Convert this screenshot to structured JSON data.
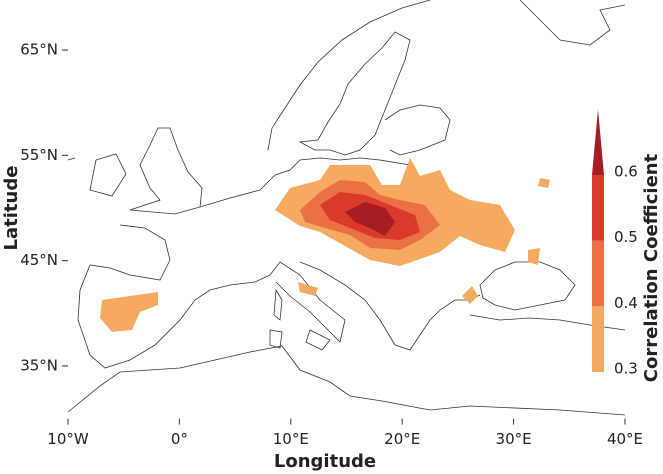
{
  "chart_data": {
    "type": "filled-contour-map",
    "xlabel": "Longitude",
    "ylabel": "Latitude",
    "xlim": [
      -10,
      40
    ],
    "ylim": [
      30,
      70
    ],
    "xticks": [
      {
        "value": -10,
        "label": "10°W"
      },
      {
        "value": 0,
        "label": "0°"
      },
      {
        "value": 10,
        "label": "10°E"
      },
      {
        "value": 20,
        "label": "20°E"
      },
      {
        "value": 30,
        "label": "30°E"
      },
      {
        "value": 40,
        "label": "40°E"
      }
    ],
    "yticks": [
      {
        "value": 35,
        "label": "35°N"
      },
      {
        "value": 45,
        "label": "45°N"
      },
      {
        "value": 55,
        "label": "55°N"
      },
      {
        "value": 65,
        "label": "65°N"
      }
    ],
    "colorbar": {
      "label": "Correlation Coefficient",
      "levels": [
        0.3,
        0.4,
        0.5,
        0.6
      ],
      "colors": [
        "#f6aa5f",
        "#ec7045",
        "#d83a2b",
        "#a51c22"
      ],
      "extend": "max"
    }
  }
}
